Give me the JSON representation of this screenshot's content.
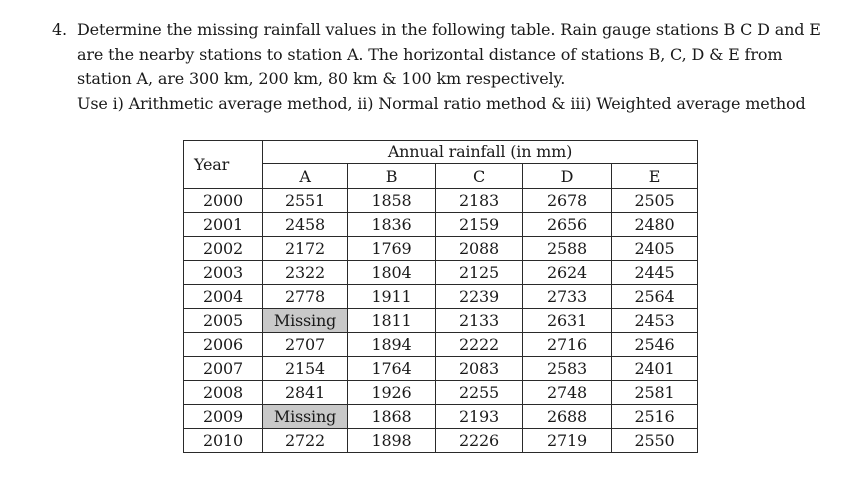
{
  "question": {
    "number": "4.",
    "lines": [
      "Determine the missing rainfall values in the following table. Rain gauge stations B C D and E",
      "are the nearby stations to station A. The horizontal distance of stations B, C, D & E from",
      "station A, are 300 km, 200 km, 80 km & 100 km respectively.",
      "Use i) Arithmetic average method, ii) Normal ratio method & iii) Weighted average method"
    ]
  },
  "table": {
    "year_header": "Year",
    "group_header": "Annual rainfall (in mm)",
    "stations": [
      "A",
      "B",
      "C",
      "D",
      "E"
    ],
    "rows": [
      {
        "year": "2000",
        "values": [
          "2551",
          "1858",
          "2183",
          "2678",
          "2505"
        ]
      },
      {
        "year": "2001",
        "values": [
          "2458",
          "1836",
          "2159",
          "2656",
          "2480"
        ]
      },
      {
        "year": "2002",
        "values": [
          "2172",
          "1769",
          "2088",
          "2588",
          "2405"
        ]
      },
      {
        "year": "2003",
        "values": [
          "2322",
          "1804",
          "2125",
          "2624",
          "2445"
        ]
      },
      {
        "year": "2004",
        "values": [
          "2778",
          "1911",
          "2239",
          "2733",
          "2564"
        ]
      },
      {
        "year": "2005",
        "values": [
          "Missing",
          "1811",
          "2133",
          "2631",
          "2453"
        ]
      },
      {
        "year": "2006",
        "values": [
          "2707",
          "1894",
          "2222",
          "2716",
          "2546"
        ]
      },
      {
        "year": "2007",
        "values": [
          "2154",
          "1764",
          "2083",
          "2583",
          "2401"
        ]
      },
      {
        "year": "2008",
        "values": [
          "2841",
          "1926",
          "2255",
          "2748",
          "2581"
        ]
      },
      {
        "year": "2009",
        "values": [
          "Missing",
          "1868",
          "2193",
          "2688",
          "2516"
        ]
      },
      {
        "year": "2010",
        "values": [
          "2722",
          "1898",
          "2226",
          "2719",
          "2550"
        ]
      }
    ],
    "missing_cell_color": "#c9c9c9"
  }
}
